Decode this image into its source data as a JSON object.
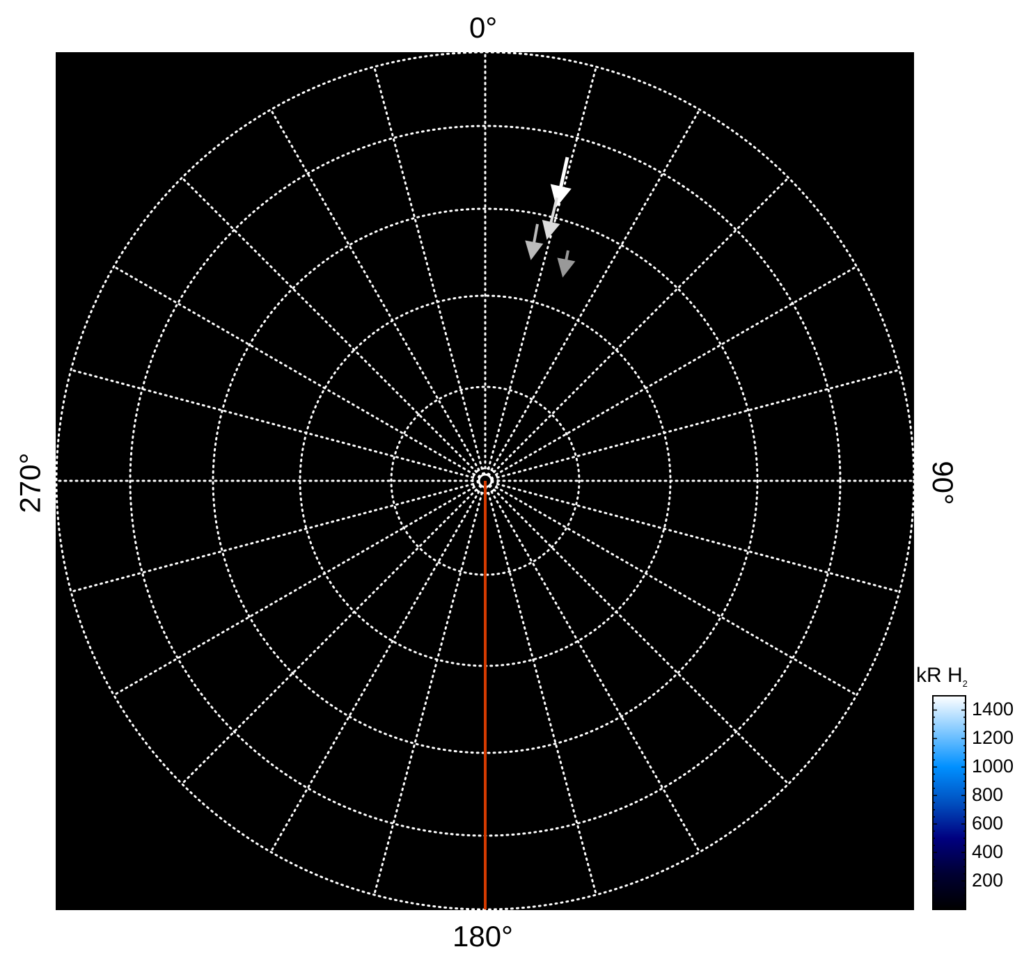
{
  "chart_data": {
    "type": "polar",
    "title": "",
    "background": "#000000",
    "grid": true,
    "grid_color": "#ffffff",
    "angle_labels": [
      {
        "angle": 0,
        "text": "0°"
      },
      {
        "angle": 90,
        "text": "90°"
      },
      {
        "angle": 180,
        "text": "180°"
      },
      {
        "angle": 270,
        "text": "270°"
      }
    ],
    "meridian_step_deg": 15,
    "reference_line": {
      "angle": 180,
      "color": "#d43a00"
    },
    "arrows": [
      {
        "color": "#ffffff"
      },
      {
        "color": "#dddddd"
      },
      {
        "color": "#bbbbbb"
      },
      {
        "color": "#999999"
      }
    ],
    "colorbar": {
      "label": "kR H",
      "label_sub": "2",
      "range": [
        0,
        1500
      ],
      "ticks": [
        "200",
        "400",
        "600",
        "800",
        "1000",
        "1200",
        "1400"
      ],
      "colormap": [
        "#000000",
        "#000033",
        "#000080",
        "#0050c0",
        "#0090ff",
        "#80c8ff",
        "#ffffff"
      ]
    }
  }
}
